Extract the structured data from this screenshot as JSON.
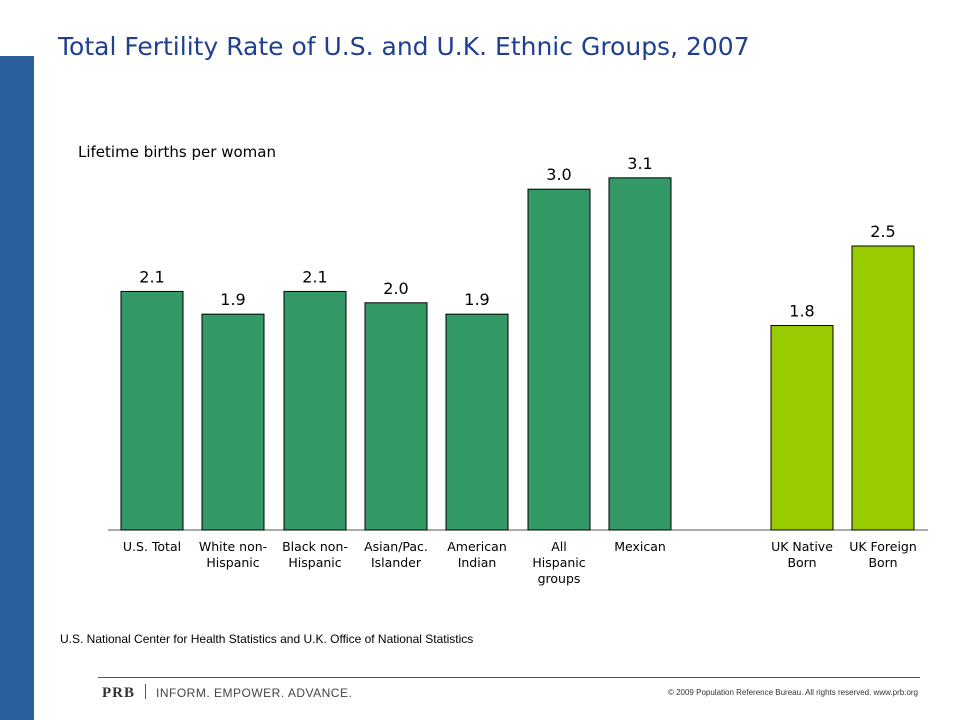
{
  "page": {
    "title": "Total Fertility Rate of U.S. and U.K. Ethnic Groups, 2007",
    "source": "U.S. National Center for Health Statistics and U.K. Office of National Statistics",
    "footer": {
      "brand": "PRB",
      "tagline": "INFORM. EMPOWER. ADVANCE.",
      "copyright": "© 2009 Population Reference Bureau. All rights reserved. www.prb.org"
    }
  },
  "colors": {
    "title": "#1f3f8f",
    "side_band": "#2b5f9e",
    "us_bars": "#339966",
    "uk_bars": "#99cc00"
  },
  "chart_data": {
    "type": "bar",
    "title": "Total Fertility Rate of U.S. and U.K. Ethnic Groups, 2007",
    "ylabel": "Lifetime births per woman",
    "xlabel": "",
    "ylim": [
      0,
      3.3
    ],
    "grid": false,
    "categories": [
      "U.S. Total",
      "White non-Hispanic",
      "Black non-Hispanic",
      "Asian/Pac. Islander",
      "American Indian",
      "All Hispanic groups",
      "Mexican",
      "UK Native Born",
      "UK Foreign Born"
    ],
    "category_lines": [
      [
        "U.S. Total"
      ],
      [
        "White non-",
        "Hispanic"
      ],
      [
        "Black non-",
        "Hispanic"
      ],
      [
        "Asian/Pac.",
        "Islander"
      ],
      [
        "American",
        "Indian"
      ],
      [
        "All",
        "Hispanic",
        "groups"
      ],
      [
        "Mexican"
      ],
      [
        "UK Native",
        "Born"
      ],
      [
        "UK Foreign",
        "Born"
      ]
    ],
    "values": [
      2.1,
      1.9,
      2.1,
      2.0,
      1.9,
      3.0,
      3.1,
      1.8,
      2.5
    ],
    "value_labels": [
      "2.1",
      "1.9",
      "2.1",
      "2.0",
      "1.9",
      "3.0",
      "3.1",
      "1.8",
      "2.5"
    ],
    "groups": [
      "US",
      "US",
      "US",
      "US",
      "US",
      "US",
      "US",
      "UK",
      "UK"
    ]
  }
}
